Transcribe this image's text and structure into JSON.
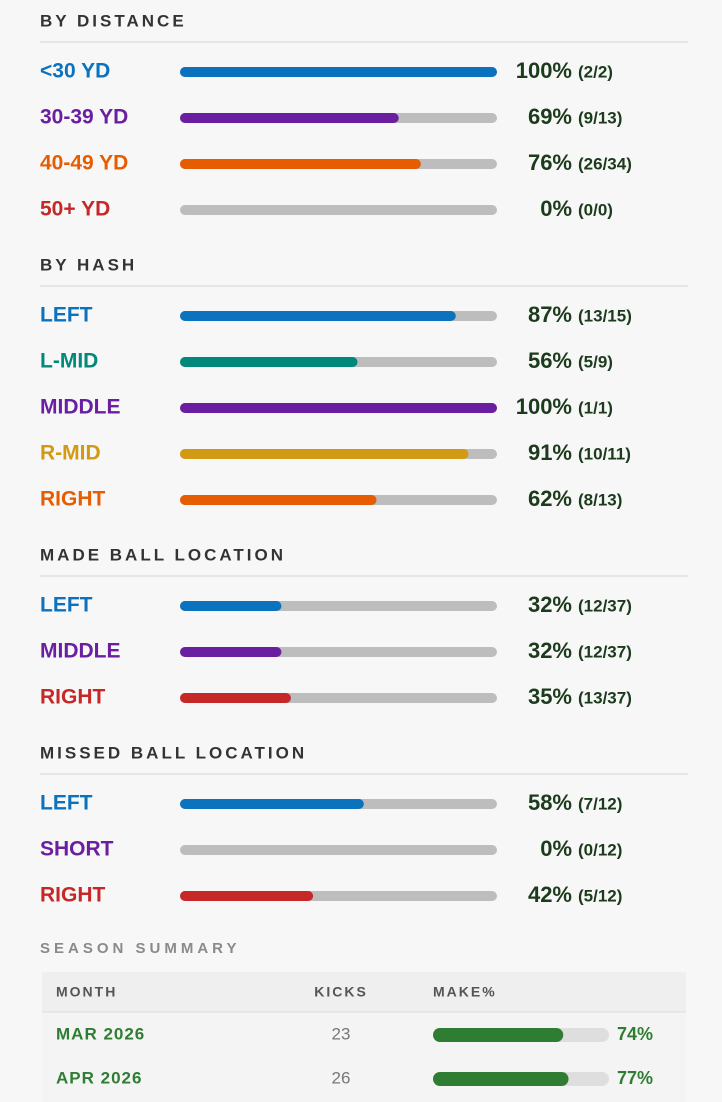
{
  "sections": [
    {
      "title": "BY DISTANCE",
      "rows": [
        {
          "label": "<30 YD",
          "color": "#0b72bd",
          "value": 100,
          "value_label": "100%",
          "count": "(2/2)"
        },
        {
          "label": "30-39 YD",
          "color": "#6a1fa0",
          "value": 69,
          "value_label": "69%",
          "count": "(9/13)"
        },
        {
          "label": "40-49 YD",
          "color": "#e65c00",
          "value": 76,
          "value_label": "76%",
          "count": "(26/34)"
        },
        {
          "label": "50+ YD",
          "color": "#c62828",
          "value": 0,
          "value_label": "0%",
          "count": "(0/0)"
        }
      ]
    },
    {
      "title": "BY HASH",
      "rows": [
        {
          "label": "LEFT",
          "color": "#0b72bd",
          "value": 87,
          "value_label": "87%",
          "count": "(13/15)"
        },
        {
          "label": "L-MID",
          "color": "#00897b",
          "value": 56,
          "value_label": "56%",
          "count": "(5/9)"
        },
        {
          "label": "MIDDLE",
          "color": "#6a1fa0",
          "value": 100,
          "value_label": "100%",
          "count": "(1/1)"
        },
        {
          "label": "R-MID",
          "color": "#d19a12",
          "value": 91,
          "value_label": "91%",
          "count": "(10/11)"
        },
        {
          "label": "RIGHT",
          "color": "#e65c00",
          "value": 62,
          "value_label": "62%",
          "count": "(8/13)"
        }
      ]
    },
    {
      "title": "MADE BALL LOCATION",
      "rows": [
        {
          "label": "LEFT",
          "color": "#0b72bd",
          "value": 32,
          "value_label": "32%",
          "count": "(12/37)"
        },
        {
          "label": "MIDDLE",
          "color": "#6a1fa0",
          "value": 32,
          "value_label": "32%",
          "count": "(12/37)"
        },
        {
          "label": "RIGHT",
          "color": "#c62828",
          "value": 35,
          "value_label": "35%",
          "count": "(13/37)"
        }
      ]
    },
    {
      "title": "MISSED BALL LOCATION",
      "rows": [
        {
          "label": "LEFT",
          "color": "#0b72bd",
          "value": 58,
          "value_label": "58%",
          "count": "(7/12)"
        },
        {
          "label": "SHORT",
          "color": "#6a1fa0",
          "value": 0,
          "value_label": "0%",
          "count": "(0/12)"
        },
        {
          "label": "RIGHT",
          "color": "#c62828",
          "value": 42,
          "value_label": "42%",
          "count": "(5/12)"
        }
      ]
    }
  ],
  "season_summary": {
    "title": "SEASON SUMMARY",
    "columns": [
      "MONTH",
      "KICKS",
      "MAKE%"
    ],
    "color": "#2e7d32",
    "rows": [
      {
        "month": "MAR 2026",
        "kicks": 23,
        "make": 74,
        "make_label": "74%"
      },
      {
        "month": "APR 2026",
        "kicks": 26,
        "make": 77,
        "make_label": "77%"
      }
    ]
  }
}
